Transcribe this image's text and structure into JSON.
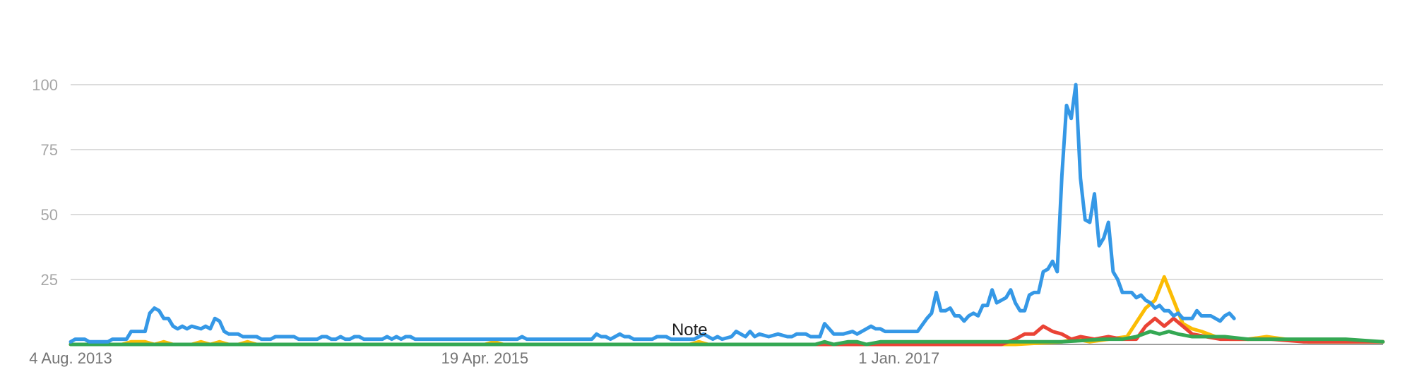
{
  "chart_data": {
    "type": "line",
    "title": "",
    "xlabel": "",
    "ylabel": "",
    "ylim": [
      0,
      100
    ],
    "xlim": [
      "2013-08-04",
      "2018-12-30"
    ],
    "y_ticks": [
      25,
      50,
      75,
      100
    ],
    "x_tick_labels": [
      {
        "date": "2013-08-04",
        "label": "4 Aug. 2013"
      },
      {
        "date": "2015-04-19",
        "label": "19 Apr. 2015"
      },
      {
        "date": "2017-01-01",
        "label": "1 Jan. 2017"
      }
    ],
    "annotations": [
      {
        "date": "2016-02-21",
        "text": "Note"
      }
    ],
    "grid": true,
    "legend": "none",
    "series": [
      {
        "color": "#fbbc04",
        "points": [
          [
            "2013-08-04",
            0
          ],
          [
            "2013-10-20",
            0
          ],
          [
            "2013-11-03",
            1
          ],
          [
            "2013-11-24",
            1
          ],
          [
            "2013-12-08",
            0
          ],
          [
            "2013-12-22",
            1
          ],
          [
            "2014-01-05",
            0
          ],
          [
            "2014-02-02",
            0
          ],
          [
            "2014-02-16",
            1
          ],
          [
            "2014-03-02",
            0
          ],
          [
            "2014-03-16",
            1
          ],
          [
            "2014-03-30",
            0
          ],
          [
            "2014-04-13",
            0
          ],
          [
            "2014-04-27",
            1
          ],
          [
            "2014-05-11",
            0
          ],
          [
            "2015-04-19",
            0
          ],
          [
            "2015-05-03",
            1
          ],
          [
            "2015-05-17",
            0
          ],
          [
            "2016-02-21",
            0
          ],
          [
            "2016-03-06",
            1
          ],
          [
            "2016-03-20",
            0
          ],
          [
            "2017-06-25",
            0
          ],
          [
            "2017-09-03",
            1
          ],
          [
            "2017-09-24",
            2
          ],
          [
            "2017-10-15",
            1
          ],
          [
            "2017-11-12",
            2
          ],
          [
            "2017-12-10",
            3
          ],
          [
            "2018-01-07",
            14
          ],
          [
            "2018-01-21",
            17
          ],
          [
            "2018-02-04",
            26
          ],
          [
            "2018-02-18",
            17
          ],
          [
            "2018-03-04",
            8
          ],
          [
            "2018-03-18",
            6
          ],
          [
            "2018-04-01",
            5
          ],
          [
            "2018-04-22",
            3
          ],
          [
            "2018-05-13",
            2
          ],
          [
            "2018-06-10",
            2
          ],
          [
            "2018-07-08",
            3
          ],
          [
            "2018-08-05",
            2
          ],
          [
            "2018-09-09",
            1
          ],
          [
            "2018-10-14",
            1
          ],
          [
            "2018-12-30",
            1
          ]
        ]
      },
      {
        "color": "#ea4335",
        "points": [
          [
            "2013-08-04",
            0
          ],
          [
            "2017-06-04",
            0
          ],
          [
            "2017-06-25",
            2
          ],
          [
            "2017-07-09",
            4
          ],
          [
            "2017-07-23",
            4
          ],
          [
            "2017-08-06",
            7
          ],
          [
            "2017-08-20",
            5
          ],
          [
            "2017-09-03",
            4
          ],
          [
            "2017-09-17",
            2
          ],
          [
            "2017-10-01",
            3
          ],
          [
            "2017-10-22",
            2
          ],
          [
            "2017-11-12",
            3
          ],
          [
            "2017-12-03",
            2
          ],
          [
            "2017-12-24",
            2
          ],
          [
            "2018-01-07",
            7
          ],
          [
            "2018-01-21",
            10
          ],
          [
            "2018-02-04",
            7
          ],
          [
            "2018-02-18",
            10
          ],
          [
            "2018-03-04",
            7
          ],
          [
            "2018-03-18",
            4
          ],
          [
            "2018-04-08",
            3
          ],
          [
            "2018-04-29",
            2
          ],
          [
            "2018-06-03",
            2
          ],
          [
            "2018-07-15",
            2
          ],
          [
            "2018-09-02",
            1
          ],
          [
            "2018-10-28",
            1
          ],
          [
            "2018-12-30",
            1
          ]
        ]
      },
      {
        "color": "#34a853",
        "points": [
          [
            "2013-08-04",
            0
          ],
          [
            "2016-08-28",
            0
          ],
          [
            "2016-09-11",
            1
          ],
          [
            "2016-09-25",
            0
          ],
          [
            "2016-10-16",
            1
          ],
          [
            "2016-10-30",
            1
          ],
          [
            "2016-11-13",
            0
          ],
          [
            "2016-12-04",
            1
          ],
          [
            "2017-03-05",
            1
          ],
          [
            "2017-06-04",
            1
          ],
          [
            "2017-09-03",
            1
          ],
          [
            "2017-11-05",
            2
          ],
          [
            "2017-12-03",
            2
          ],
          [
            "2017-12-24",
            3
          ],
          [
            "2018-01-14",
            5
          ],
          [
            "2018-01-28",
            4
          ],
          [
            "2018-02-11",
            5
          ],
          [
            "2018-02-25",
            4
          ],
          [
            "2018-03-18",
            3
          ],
          [
            "2018-05-06",
            3
          ],
          [
            "2018-06-10",
            2
          ],
          [
            "2018-07-08",
            2
          ],
          [
            "2018-09-02",
            2
          ],
          [
            "2018-11-04",
            2
          ],
          [
            "2018-12-30",
            1
          ]
        ]
      },
      {
        "color": "#3598e6",
        "points": [
          [
            "2013-08-04",
            1
          ],
          [
            "2013-08-11",
            2
          ],
          [
            "2013-08-25",
            2
          ],
          [
            "2013-09-01",
            1
          ],
          [
            "2013-09-29",
            1
          ],
          [
            "2013-10-06",
            2
          ],
          [
            "2013-10-27",
            2
          ],
          [
            "2013-11-03",
            5
          ],
          [
            "2013-11-24",
            5
          ],
          [
            "2013-12-01",
            12
          ],
          [
            "2013-12-08",
            14
          ],
          [
            "2013-12-15",
            13
          ],
          [
            "2013-12-22",
            10
          ],
          [
            "2013-12-29",
            10
          ],
          [
            "2014-01-05",
            7
          ],
          [
            "2014-01-12",
            6
          ],
          [
            "2014-01-19",
            7
          ],
          [
            "2014-01-26",
            6
          ],
          [
            "2014-02-02",
            7
          ],
          [
            "2014-02-16",
            6
          ],
          [
            "2014-02-23",
            7
          ],
          [
            "2014-03-02",
            6
          ],
          [
            "2014-03-09",
            10
          ],
          [
            "2014-03-16",
            9
          ],
          [
            "2014-03-23",
            5
          ],
          [
            "2014-03-30",
            4
          ],
          [
            "2014-04-13",
            4
          ],
          [
            "2014-04-20",
            3
          ],
          [
            "2014-05-11",
            3
          ],
          [
            "2014-05-18",
            2
          ],
          [
            "2014-06-01",
            2
          ],
          [
            "2014-06-08",
            3
          ],
          [
            "2014-07-06",
            3
          ],
          [
            "2014-07-13",
            2
          ],
          [
            "2014-08-10",
            2
          ],
          [
            "2014-08-17",
            3
          ],
          [
            "2014-08-24",
            3
          ],
          [
            "2014-08-31",
            2
          ],
          [
            "2014-09-07",
            2
          ],
          [
            "2014-09-14",
            3
          ],
          [
            "2014-09-21",
            2
          ],
          [
            "2014-09-28",
            2
          ],
          [
            "2014-10-05",
            3
          ],
          [
            "2014-10-12",
            3
          ],
          [
            "2014-10-19",
            2
          ],
          [
            "2014-11-16",
            2
          ],
          [
            "2014-11-23",
            3
          ],
          [
            "2014-11-30",
            2
          ],
          [
            "2014-12-07",
            3
          ],
          [
            "2014-12-14",
            2
          ],
          [
            "2014-12-21",
            3
          ],
          [
            "2014-12-28",
            3
          ],
          [
            "2015-01-04",
            2
          ],
          [
            "2015-06-07",
            2
          ],
          [
            "2015-06-14",
            3
          ],
          [
            "2015-06-21",
            2
          ],
          [
            "2015-09-27",
            2
          ],
          [
            "2015-10-04",
            4
          ],
          [
            "2015-10-11",
            3
          ],
          [
            "2015-10-18",
            3
          ],
          [
            "2015-10-25",
            2
          ],
          [
            "2015-11-01",
            3
          ],
          [
            "2015-11-08",
            4
          ],
          [
            "2015-11-15",
            3
          ],
          [
            "2015-11-22",
            3
          ],
          [
            "2015-11-29",
            2
          ],
          [
            "2015-12-27",
            2
          ],
          [
            "2016-01-03",
            3
          ],
          [
            "2016-01-17",
            3
          ],
          [
            "2016-01-24",
            2
          ],
          [
            "2016-02-28",
            2
          ],
          [
            "2016-03-06",
            3
          ],
          [
            "2016-03-13",
            4
          ],
          [
            "2016-03-20",
            3
          ],
          [
            "2016-03-27",
            2
          ],
          [
            "2016-04-03",
            3
          ],
          [
            "2016-04-10",
            2
          ],
          [
            "2016-04-24",
            3
          ],
          [
            "2016-05-01",
            5
          ],
          [
            "2016-05-08",
            4
          ],
          [
            "2016-05-15",
            3
          ],
          [
            "2016-05-22",
            5
          ],
          [
            "2016-05-29",
            3
          ],
          [
            "2016-06-05",
            4
          ],
          [
            "2016-06-19",
            3
          ],
          [
            "2016-07-03",
            4
          ],
          [
            "2016-07-17",
            3
          ],
          [
            "2016-07-24",
            3
          ],
          [
            "2016-07-31",
            4
          ],
          [
            "2016-08-14",
            4
          ],
          [
            "2016-08-21",
            3
          ],
          [
            "2016-09-04",
            3
          ],
          [
            "2016-09-11",
            8
          ],
          [
            "2016-09-18",
            6
          ],
          [
            "2016-09-25",
            4
          ],
          [
            "2016-10-09",
            4
          ],
          [
            "2016-10-23",
            5
          ],
          [
            "2016-10-30",
            4
          ],
          [
            "2016-11-13",
            6
          ],
          [
            "2016-11-20",
            7
          ],
          [
            "2016-11-27",
            6
          ],
          [
            "2016-12-04",
            6
          ],
          [
            "2016-12-11",
            5
          ],
          [
            "2016-12-25",
            5
          ],
          [
            "2017-01-01",
            5
          ],
          [
            "2017-01-08",
            5
          ],
          [
            "2017-01-29",
            5
          ],
          [
            "2017-02-12",
            10
          ],
          [
            "2017-02-19",
            12
          ],
          [
            "2017-02-26",
            20
          ],
          [
            "2017-03-05",
            13
          ],
          [
            "2017-03-12",
            13
          ],
          [
            "2017-03-19",
            14
          ],
          [
            "2017-03-26",
            11
          ],
          [
            "2017-04-02",
            11
          ],
          [
            "2017-04-09",
            9
          ],
          [
            "2017-04-16",
            11
          ],
          [
            "2017-04-23",
            12
          ],
          [
            "2017-04-30",
            11
          ],
          [
            "2017-05-07",
            15
          ],
          [
            "2017-05-14",
            15
          ],
          [
            "2017-05-21",
            21
          ],
          [
            "2017-05-28",
            16
          ],
          [
            "2017-06-04",
            17
          ],
          [
            "2017-06-11",
            18
          ],
          [
            "2017-06-18",
            21
          ],
          [
            "2017-06-25",
            16
          ],
          [
            "2017-07-02",
            13
          ],
          [
            "2017-07-09",
            13
          ],
          [
            "2017-07-16",
            19
          ],
          [
            "2017-07-23",
            20
          ],
          [
            "2017-07-30",
            20
          ],
          [
            "2017-08-06",
            28
          ],
          [
            "2017-08-13",
            29
          ],
          [
            "2017-08-20",
            32
          ],
          [
            "2017-08-27",
            28
          ],
          [
            "2017-09-03",
            65
          ],
          [
            "2017-09-10",
            92
          ],
          [
            "2017-09-17",
            87
          ],
          [
            "2017-09-24",
            100
          ],
          [
            "2017-10-01",
            64
          ],
          [
            "2017-10-08",
            48
          ],
          [
            "2017-10-15",
            47
          ],
          [
            "2017-10-22",
            58
          ],
          [
            "2017-10-29",
            38
          ],
          [
            "2017-11-05",
            41
          ],
          [
            "2017-11-12",
            47
          ],
          [
            "2017-11-19",
            28
          ],
          [
            "2017-11-26",
            25
          ],
          [
            "2017-12-03",
            20
          ],
          [
            "2017-12-17",
            20
          ],
          [
            "2017-12-24",
            18
          ],
          [
            "2017-12-31",
            19
          ],
          [
            "2018-01-07",
            17
          ],
          [
            "2018-01-14",
            16
          ],
          [
            "2018-01-21",
            14
          ],
          [
            "2018-01-28",
            15
          ],
          [
            "2018-02-04",
            13
          ],
          [
            "2018-02-11",
            13
          ],
          [
            "2018-02-18",
            11
          ],
          [
            "2018-02-25",
            12
          ],
          [
            "2018-03-04",
            10
          ],
          [
            "2018-03-18",
            10
          ],
          [
            "2018-03-25",
            13
          ],
          [
            "2018-04-01",
            11
          ],
          [
            "2018-04-15",
            11
          ],
          [
            "2018-04-22",
            10
          ],
          [
            "2018-04-29",
            9
          ],
          [
            "2018-05-06",
            11
          ],
          [
            "2018-05-13",
            12
          ],
          [
            "2018-05-20",
            10
          ]
        ]
      }
    ]
  }
}
